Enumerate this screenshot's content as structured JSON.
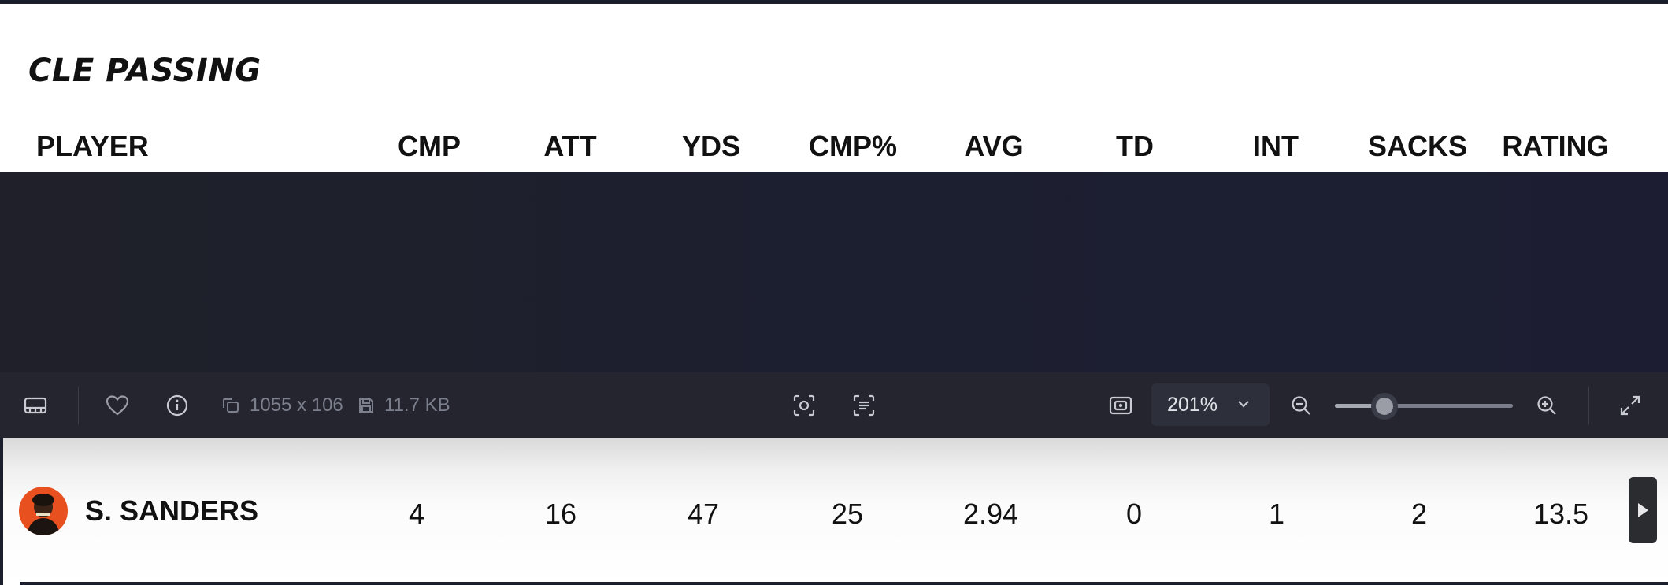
{
  "stats_table": {
    "title": "CLE PASSING",
    "columns": [
      "PLAYER",
      "CMP",
      "ATT",
      "YDS",
      "CMP%",
      "AVG",
      "TD",
      "INT",
      "SACKS",
      "RATING"
    ],
    "rows": [
      {
        "player": "S. SANDERS",
        "values": [
          "4",
          "16",
          "47",
          "25",
          "2.94",
          "0",
          "1",
          "2",
          "13.5"
        ]
      }
    ]
  },
  "viewer_toolbar": {
    "dimensions": "1055 x 106",
    "file_size": "11.7 KB",
    "zoom_level": "201%",
    "zoom_slider_fraction": 0.28,
    "icons": [
      "filmstrip-icon",
      "heart-icon",
      "info-icon",
      "dimensions-icon",
      "save-icon",
      "screenshot-icon",
      "text-recognition-icon",
      "fit-to-window-icon",
      "chevron-down-icon",
      "zoom-out-icon",
      "zoom-in-icon",
      "fullscreen-icon"
    ]
  },
  "colors": {
    "dark_background": "#1b1e2d",
    "toolbar_background": "#24252f",
    "avatar_orange": "#e8511f"
  }
}
